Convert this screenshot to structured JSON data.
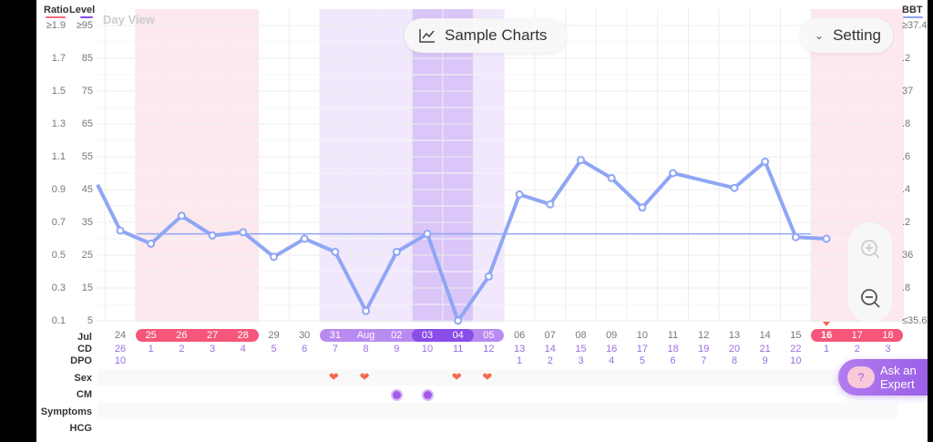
{
  "header": {
    "ratio_label": "Ratio",
    "level_label": "Level",
    "bbt_label": "BBT",
    "view_label": "Day View",
    "sample_charts": "Sample Charts",
    "setting": "Setting"
  },
  "colors": {
    "ratio": "#f06b7c",
    "level": "#8a4de8",
    "bbt": "#8fa6f5",
    "period": "#f5567a",
    "fertile": "#b98af0",
    "ovulation": "#8a4de8",
    "heart": "#f26a4b"
  },
  "axes": {
    "ratio": [
      "≥1.9",
      "1.7",
      "1.5",
      "1.3",
      "1.1",
      "0.9",
      "0.7",
      "0.5",
      "0.3",
      "0.1"
    ],
    "level": [
      "≥95",
      "85",
      "75",
      "65",
      "55",
      "45",
      "35",
      "25",
      "15",
      "5"
    ],
    "bbt": [
      "≥37.4",
      ".2",
      "37",
      ".8",
      ".6",
      ".4",
      ".2",
      "36",
      ".8",
      "≤35.6"
    ]
  },
  "rows": {
    "month": "Jul",
    "cd": "CD",
    "dpo": "DPO",
    "sex": "Sex",
    "cm": "CM",
    "symptoms": "Symptoms",
    "hcg": "HCG"
  },
  "chart_data": {
    "type": "line",
    "title": "BBT",
    "ylabel": "BBT",
    "ylim": [
      35.6,
      37.4
    ],
    "coverline": 36.13,
    "days": [
      "24",
      "25",
      "26",
      "27",
      "28",
      "29",
      "30",
      "31",
      "Aug",
      "02",
      "03",
      "04",
      "05",
      "06",
      "07",
      "08",
      "09",
      "10",
      "11",
      "12",
      "13",
      "14",
      "15",
      "16",
      "17",
      "18"
    ],
    "cd": [
      "26",
      "1",
      "2",
      "3",
      "4",
      "5",
      "6",
      "7",
      "8",
      "9",
      "10",
      "11",
      "12",
      "13",
      "14",
      "15",
      "16",
      "17",
      "18",
      "19",
      "20",
      "21",
      "22",
      "1",
      "2",
      "3"
    ],
    "dpo": [
      "10",
      "",
      "",
      "",
      "",
      "",
      "",
      "",
      "",
      "",
      "",
      "",
      "",
      "1",
      "2",
      "3",
      "4",
      "5",
      "6",
      "7",
      "8",
      "9",
      "10",
      "",
      "",
      ""
    ],
    "bbt": [
      36.15,
      36.07,
      36.24,
      36.12,
      36.14,
      35.99,
      36.1,
      36.02,
      35.66,
      36.02,
      36.13,
      35.6,
      35.87,
      36.37,
      36.31,
      36.58,
      36.47,
      36.29,
      36.5,
      null,
      36.41,
      36.57,
      36.11,
      36.1,
      null,
      null
    ],
    "bbt_prev": 36.43,
    "period_days": [
      1,
      2,
      3,
      4,
      23,
      24,
      25
    ],
    "fertile_days": [
      7,
      8,
      9,
      10,
      11,
      12
    ],
    "ovulation_days": [
      10,
      11
    ],
    "today": 23,
    "sex_days": [
      7,
      8,
      11,
      12
    ],
    "cm_days": [
      9,
      10
    ]
  },
  "buttons": {
    "ask_expert": "Ask an Expert"
  }
}
